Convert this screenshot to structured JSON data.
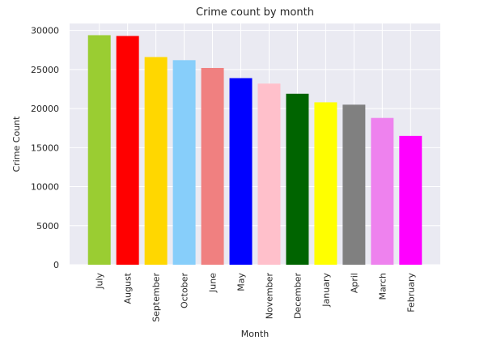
{
  "chart_data": {
    "type": "bar",
    "title": "Crime count by month",
    "xlabel": "Month",
    "ylabel": "Crime Count",
    "categories": [
      "July",
      "August",
      "September",
      "October",
      "June",
      "May",
      "November",
      "December",
      "January",
      "April",
      "March",
      "February"
    ],
    "values": [
      29400,
      29300,
      26600,
      26200,
      25200,
      23900,
      23200,
      21900,
      20800,
      20500,
      18800,
      16500
    ],
    "colors": [
      "#9acd32",
      "#ff0000",
      "#ffd700",
      "#87cefa",
      "#f08080",
      "#0000ff",
      "#ffc0cb",
      "#006400",
      "#ffff00",
      "#808080",
      "#ee82ee",
      "#ff00ff"
    ],
    "yticks": [
      0,
      5000,
      10000,
      15000,
      20000,
      25000,
      30000
    ],
    "ylim": [
      0,
      30900
    ],
    "grid": true,
    "background": "#eaeaf2"
  }
}
